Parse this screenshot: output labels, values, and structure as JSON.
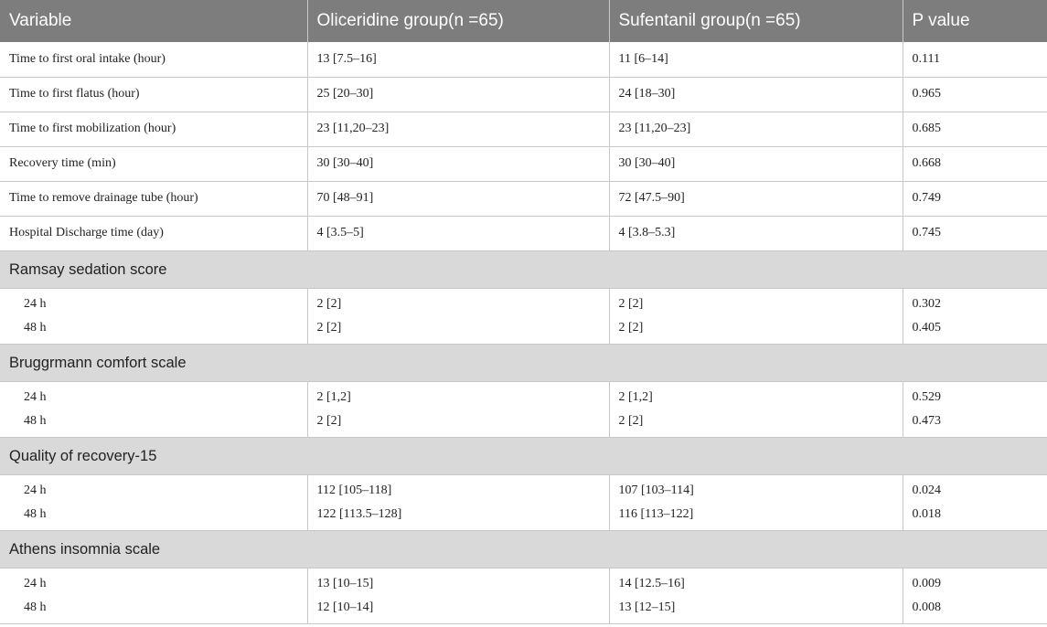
{
  "header": {
    "variable": "Variable",
    "oliceridine": "Oliceridine group(n =65)",
    "sufentanil": "Sufentanil group(n =65)",
    "p_value": "P value"
  },
  "rows": [
    {
      "variable": "Time to first oral intake (hour)",
      "oliceridine": "13 [7.5–16]",
      "sufentanil": "11 [6–14]",
      "p": "0.111"
    },
    {
      "variable": "Time to first flatus (hour)",
      "oliceridine": "25 [20–30]",
      "sufentanil": "24 [18–30]",
      "p": "0.965"
    },
    {
      "variable": "Time to first mobilization (hour)",
      "oliceridine": "23 [11,20–23]",
      "sufentanil": "23 [11,20–23]",
      "p": "0.685"
    },
    {
      "variable": "Recovery time (min)",
      "oliceridine": "30 [30–40]",
      "sufentanil": "30 [30–40]",
      "p": "0.668"
    },
    {
      "variable": "Time to remove drainage tube (hour)",
      "oliceridine": "70 [48–91]",
      "sufentanil": "72 [47.5–90]",
      "p": "0.749"
    },
    {
      "variable": "Hospital Discharge time (day)",
      "oliceridine": "4 [3.5–5]",
      "sufentanil": "4 [3.8–5.3]",
      "p": "0.745"
    }
  ],
  "sections": [
    {
      "title": "Ramsay sedation score",
      "rows": [
        {
          "time": "24 h",
          "oliceridine": "2 [2]",
          "sufentanil": "2 [2]",
          "p": "0.302"
        },
        {
          "time": "48 h",
          "oliceridine": "2 [2]",
          "sufentanil": "2 [2]",
          "p": "0.405"
        }
      ]
    },
    {
      "title": "Bruggrmann comfort scale",
      "rows": [
        {
          "time": "24 h",
          "oliceridine": "2 [1,2]",
          "sufentanil": "2 [1,2]",
          "p": "0.529"
        },
        {
          "time": "48 h",
          "oliceridine": "2 [2]",
          "sufentanil": "2 [2]",
          "p": "0.473"
        }
      ]
    },
    {
      "title": "Quality of recovery-15",
      "rows": [
        {
          "time": "24 h",
          "oliceridine": "112 [105–118]",
          "sufentanil": "107 [103–114]",
          "p": "0.024"
        },
        {
          "time": "48 h",
          "oliceridine": "122 [113.5–128]",
          "sufentanil": "116 [113–122]",
          "p": "0.018"
        }
      ]
    },
    {
      "title": "Athens insomnia scale",
      "rows": [
        {
          "time": "24 h",
          "oliceridine": "13 [10–15]",
          "sufentanil": "14 [12.5–16]",
          "p": "0.009"
        },
        {
          "time": "48 h",
          "oliceridine": "12 [10–14]",
          "sufentanil": "13 [12–15]",
          "p": "0.008"
        }
      ]
    }
  ]
}
